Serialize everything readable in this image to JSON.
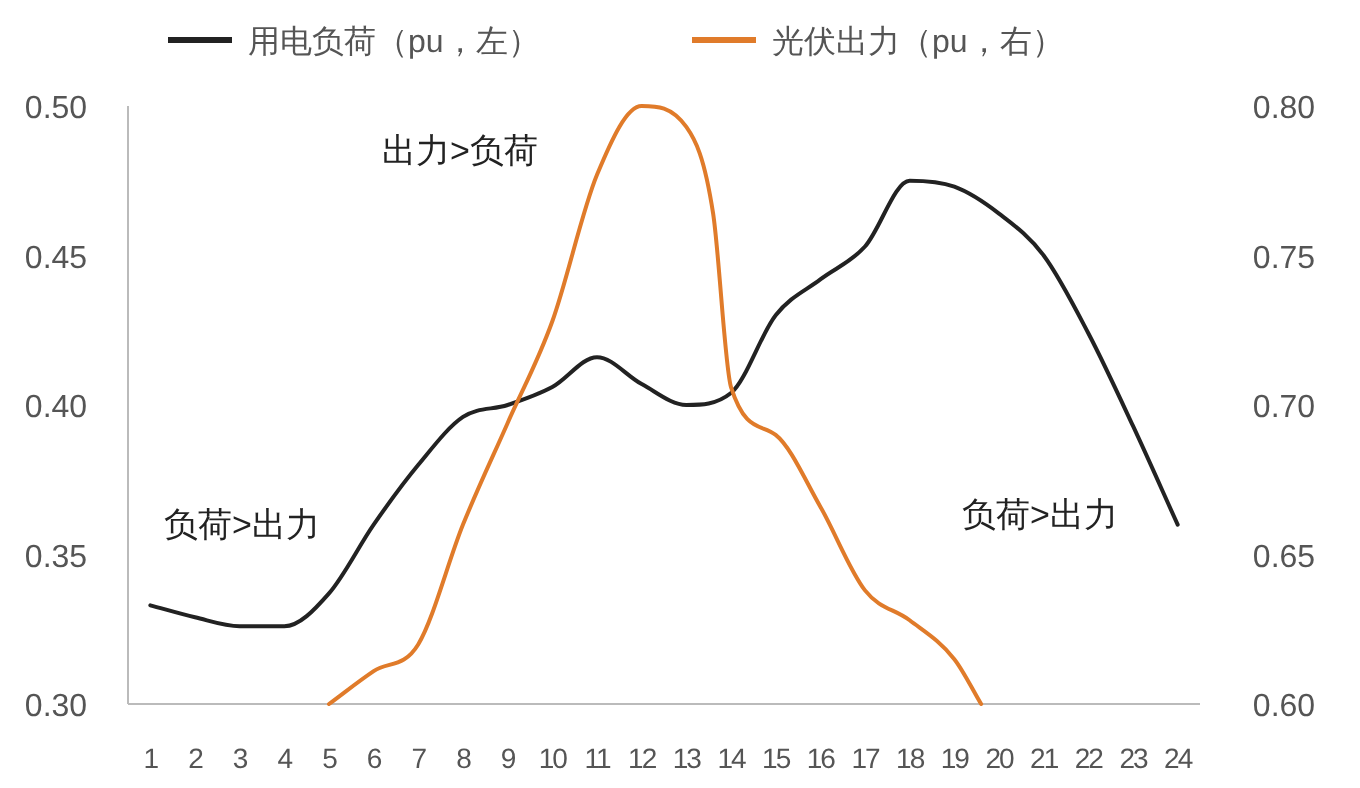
{
  "chart_data": {
    "type": "line",
    "legend": "top",
    "grid": false,
    "marker": "none",
    "line_style": "solid",
    "x": [
      1,
      2,
      3,
      4,
      5,
      6,
      7,
      8,
      9,
      10,
      11,
      12,
      13,
      14,
      15,
      16,
      17,
      18,
      19,
      20,
      21,
      22,
      23,
      24
    ],
    "xlim": [
      0.5,
      24.5
    ],
    "xticks": [
      1,
      2,
      3,
      4,
      5,
      6,
      7,
      8,
      9,
      10,
      11,
      12,
      13,
      14,
      15,
      16,
      17,
      18,
      19,
      20,
      21,
      22,
      23,
      24
    ],
    "ylim": [
      0.3,
      0.5
    ],
    "yticks": [
      {
        "value": 0.3,
        "label": "0.30"
      },
      {
        "value": 0.35,
        "label": "0.35"
      },
      {
        "value": 0.4,
        "label": "0.40"
      },
      {
        "value": 0.45,
        "label": "0.45"
      },
      {
        "value": 0.5,
        "label": "0.50"
      }
    ],
    "y2lim": [
      0.6,
      0.8
    ],
    "y2ticks": [
      {
        "value": 0.6,
        "label": "0.60"
      },
      {
        "value": 0.65,
        "label": "0.65"
      },
      {
        "value": 0.7,
        "label": "0.70"
      },
      {
        "value": 0.75,
        "label": "0.75"
      },
      {
        "value": 0.8,
        "label": "0.80"
      }
    ],
    "series": [
      {
        "name": "用电负荷（pu，左）",
        "color": "#222222",
        "values": [
          0.333,
          0.329,
          0.326,
          0.326,
          0.337,
          0.36,
          0.38,
          0.396,
          0.4,
          0.406,
          0.416,
          0.407,
          0.4,
          0.404,
          0.43,
          0.442,
          0.453,
          0.475,
          0.473,
          0.464,
          0.45,
          0.424,
          0.393,
          0.36
        ]
      },
      {
        "name": "光伏出力（pu，右）",
        "color": "#e07b2a",
        "axis": "y2",
        "x": [
          5,
          6,
          7,
          8,
          9,
          10,
          11,
          12,
          13,
          13.6,
          14,
          15,
          16,
          17,
          18,
          19,
          19.6
        ],
        "values": [
          0.6,
          0.611,
          0.62,
          0.66,
          0.694,
          0.728,
          0.777,
          0.8,
          0.793,
          0.764,
          0.706,
          0.69,
          0.666,
          0.638,
          0.628,
          0.615,
          0.6
        ]
      }
    ],
    "annotations": [
      "出力>负荷",
      "负荷>出力",
      "负荷>出力"
    ]
  }
}
